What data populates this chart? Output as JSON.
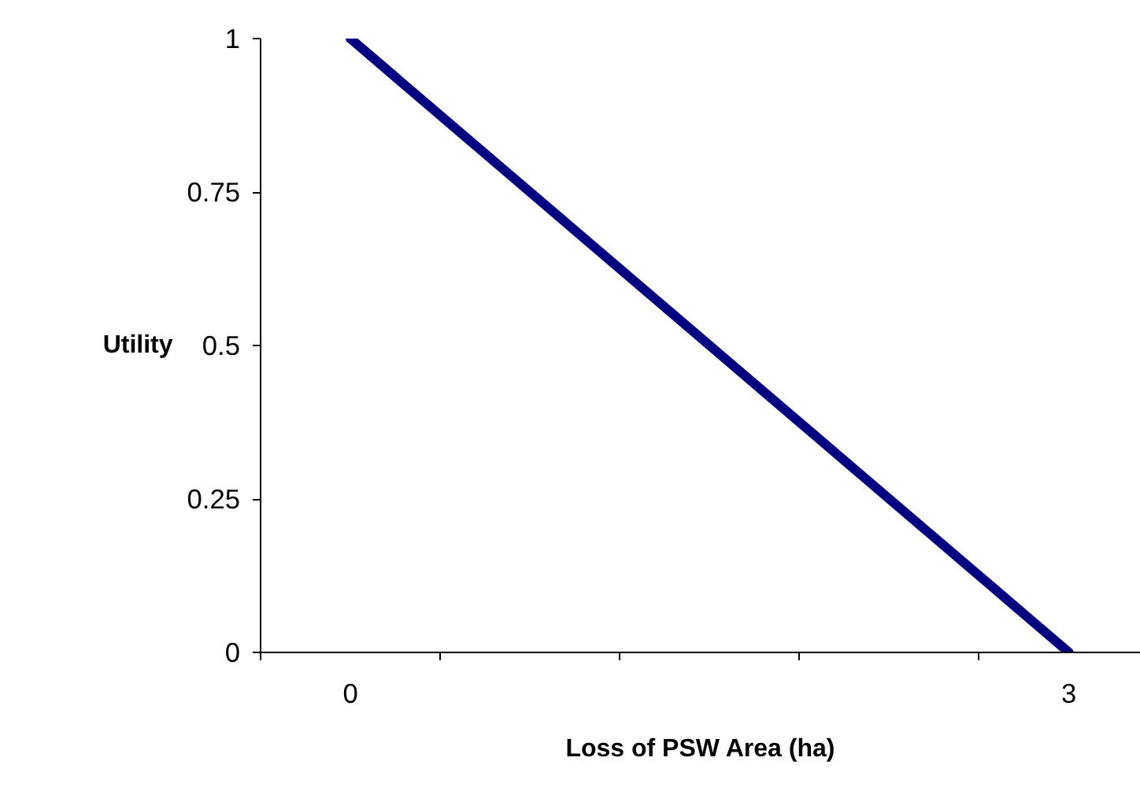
{
  "chart_data": {
    "type": "line",
    "xlabel": "Loss of PSW Area (ha)",
    "ylabel": "Utility",
    "categories": [
      "0",
      null,
      null,
      null,
      "3"
    ],
    "series": [
      {
        "color": "#000080",
        "values": [
          1,
          0.75,
          0.5,
          0.25,
          0
        ]
      }
    ],
    "ylim": [
      0,
      1
    ],
    "yticks": [
      0,
      0.25,
      0.5,
      0.75,
      1
    ],
    "grid": false,
    "marker": "none",
    "line_style": "solid"
  }
}
